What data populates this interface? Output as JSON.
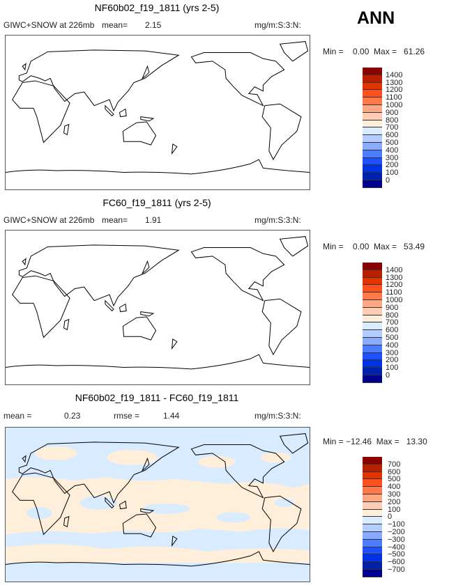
{
  "season": "ANN",
  "colors": [
    "#8B0000",
    "#B82000",
    "#E33400",
    "#FF5020",
    "#FF7A48",
    "#FFA884",
    "#FFCDB4",
    "#FFEEDA",
    "#D8EBFF",
    "#B4CCFF",
    "#88AAFF",
    "#4C7CFF",
    "#1E50FF",
    "#0032E6",
    "#0022AA",
    "#000090"
  ],
  "panels": [
    {
      "title": "NF60b02_f19_1811 (yrs 2-5)",
      "field": "GIWC+SNOW at 226mb",
      "mean_label": "mean=",
      "mean": "2.15",
      "units": "mg/m:S:3:N:",
      "minmax": "Min =    0.00  Max =   61.26",
      "levels": [
        "1400",
        "1300",
        "1200",
        "1100",
        "1000",
        "900",
        "800",
        "700",
        "600",
        "500",
        "400",
        "300",
        "200",
        "100",
        "0"
      ]
    },
    {
      "title": "FC60_f19_1811 (yrs 2-5)",
      "field": "GIWC+SNOW at 226mb",
      "mean_label": "mean=",
      "mean": "1.91",
      "units": "mg/m:S:3:N:",
      "minmax": "Min =    0.00  Max =   53.49",
      "levels": [
        "1400",
        "1300",
        "1200",
        "1100",
        "1000",
        "900",
        "800",
        "700",
        "600",
        "500",
        "400",
        "300",
        "200",
        "100",
        "0"
      ]
    },
    {
      "title": "NF60b02_f19_1811 - FC60_f19_1811",
      "field": "mean =",
      "mean_label": "rmse =",
      "mean": "0.23",
      "rmse": "1.44",
      "units": "mg/m:S:3:N:",
      "minmax": "Min = −12.46  Max =   13.30",
      "levels": [
        "700",
        "600",
        "500",
        "400",
        "300",
        "200",
        "100",
        "0",
        "−100",
        "−200",
        "−300",
        "−400",
        "−500",
        "−600",
        "−700"
      ]
    }
  ]
}
